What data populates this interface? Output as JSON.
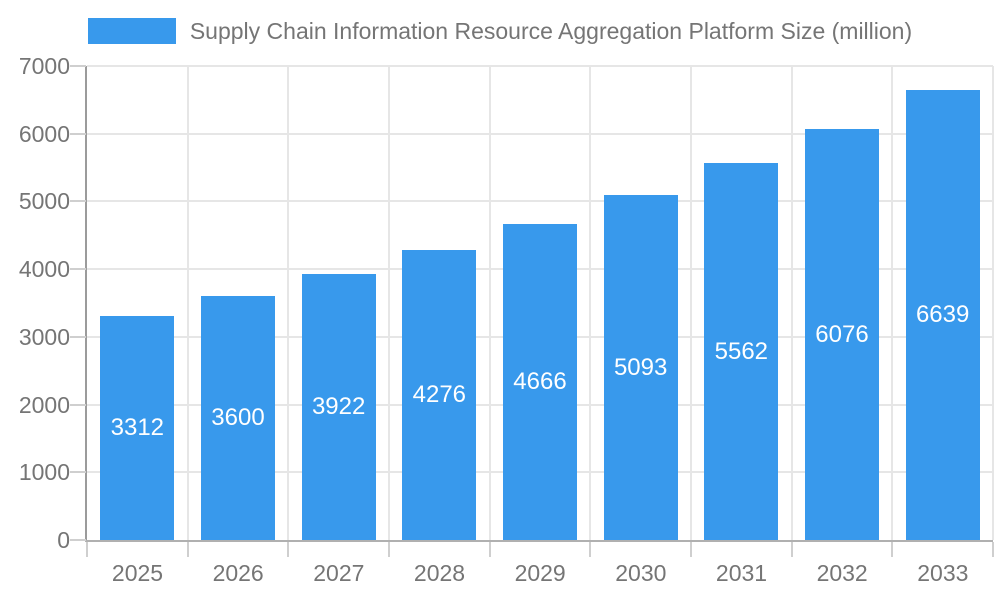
{
  "chart_data": {
    "type": "bar",
    "title": "Supply Chain Information Resource Aggregation Platform Size (million)",
    "categories": [
      "2025",
      "2026",
      "2027",
      "2028",
      "2029",
      "2030",
      "2031",
      "2032",
      "2033"
    ],
    "values": [
      3312,
      3600,
      3922,
      4276,
      4666,
      5093,
      5562,
      6076,
      6639
    ],
    "series_name": "Supply Chain Information Resource Aggregation Platform Size (million)",
    "xlabel": "",
    "ylabel": "",
    "ylim": [
      0,
      7000
    ],
    "ytick_step": 1000,
    "ytick_labels": [
      "0",
      "1000",
      "2000",
      "3000",
      "4000",
      "5000",
      "6000",
      "7000"
    ],
    "grid": true,
    "legend_position": "top",
    "bar_labels_inside": true,
    "colors": {
      "bar": "#3899ec",
      "bar_label_text": "#ffffff",
      "axis_text": "#757575",
      "gridline": "#e6e6e6",
      "tick": "#cfcfcf",
      "y_axis_line": "#9b9b9b",
      "x_axis_line": "#b0b0b0",
      "background": "#ffffff"
    }
  }
}
